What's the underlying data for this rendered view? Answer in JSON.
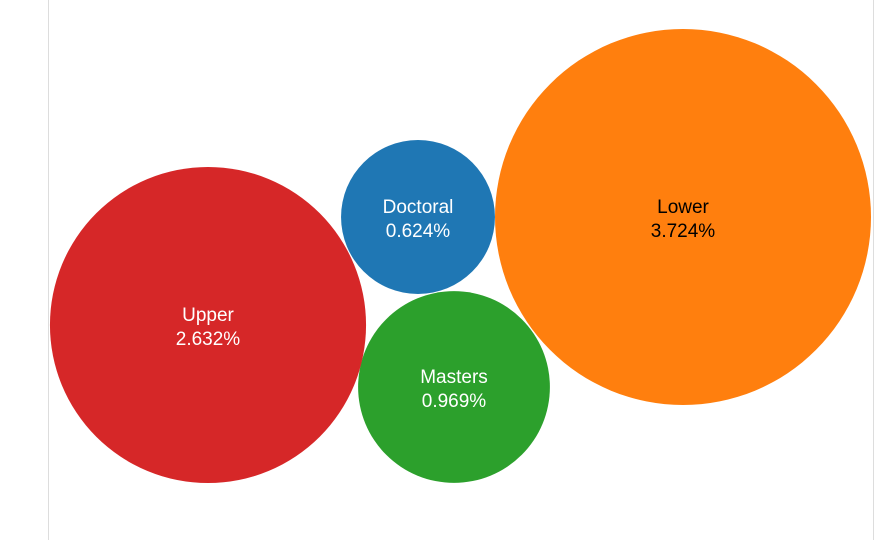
{
  "chart_data": {
    "type": "bubble",
    "series": [
      {
        "name": "Doctoral",
        "value": 0.624,
        "label": "0.624%",
        "color": "#1f77b4",
        "text_color": "#ffffff"
      },
      {
        "name": "Masters",
        "value": 0.969,
        "label": "0.969%",
        "color": "#2ca02c",
        "text_color": "#ffffff"
      },
      {
        "name": "Upper",
        "value": 2.632,
        "label": "2.632%",
        "color": "#d62728",
        "text_color": "#ffffff"
      },
      {
        "name": "Lower",
        "value": 3.724,
        "label": "3.724%",
        "color": "#ff7f0e",
        "text_color": "#000000"
      }
    ]
  }
}
